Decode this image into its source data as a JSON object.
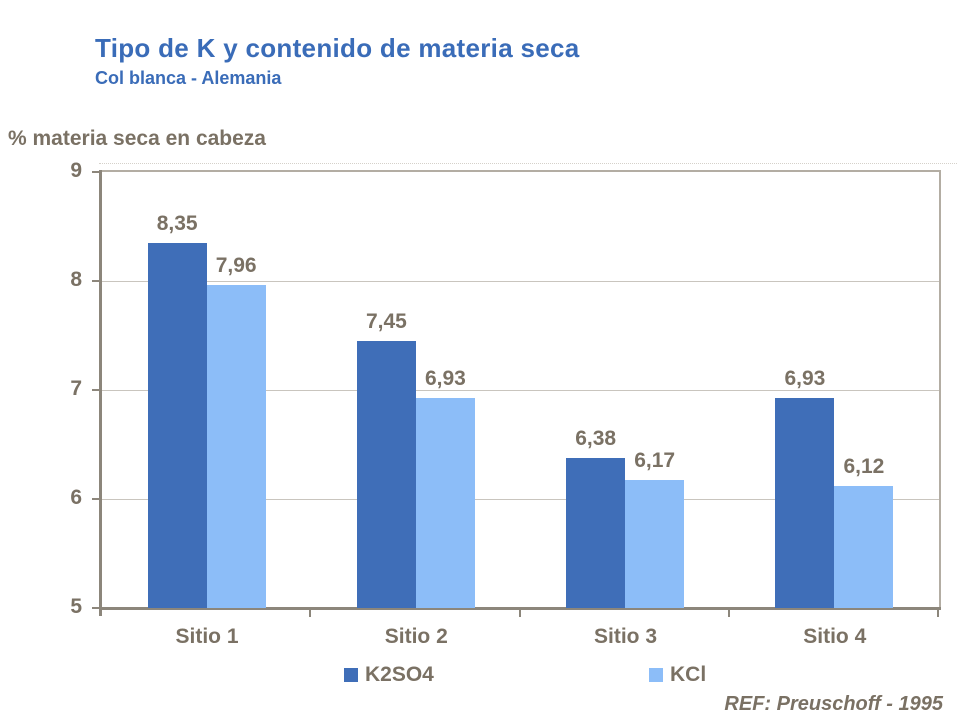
{
  "slide": {
    "title": "Tipo de K y contenido de materia seca",
    "subtitle": "Col blanca - Alemania",
    "y_axis_title": "% materia seca en cabeza",
    "ref": "REF: Preuschoff - 1995"
  },
  "chart_data": {
    "type": "bar",
    "title": "Tipo de K y contenido de materia seca",
    "subtitle": "Col blanca - Alemania",
    "axis_title": "% materia seca en cabeza",
    "categories": [
      "Sitio 1",
      "Sitio 2",
      "Sitio 3",
      "Sitio 4"
    ],
    "series": [
      {
        "name": "K2SO4",
        "color": "#3F6EB8",
        "values": [
          8.35,
          7.45,
          6.38,
          6.93
        ],
        "labels": [
          "8,35",
          "7,45",
          "6,38",
          "6,93"
        ]
      },
      {
        "name": "KCl",
        "color": "#8CBDF8",
        "values": [
          7.96,
          6.93,
          6.17,
          6.12
        ],
        "labels": [
          "7,96",
          "6,93",
          "6,17",
          "6,12"
        ]
      }
    ],
    "ylim": [
      5,
      9
    ],
    "yticks": [
      9,
      8,
      7,
      6,
      5
    ],
    "grid": "horizontal",
    "legend_position": "bottom",
    "ref": "REF: Preuschoff - 1995"
  },
  "colors": {
    "title_blue": "#3A6CB8",
    "text_taupe": "#7A7164",
    "bar_dark_blue": "#3F6EB8",
    "bar_light_blue": "#8CBDF8",
    "gridline": "#C9C5BE",
    "axis_dark": "#8C867B",
    "frame_light": "#B3ADA3",
    "dotted_top": "#D5D1CA",
    "background": "#FFFFFF"
  }
}
